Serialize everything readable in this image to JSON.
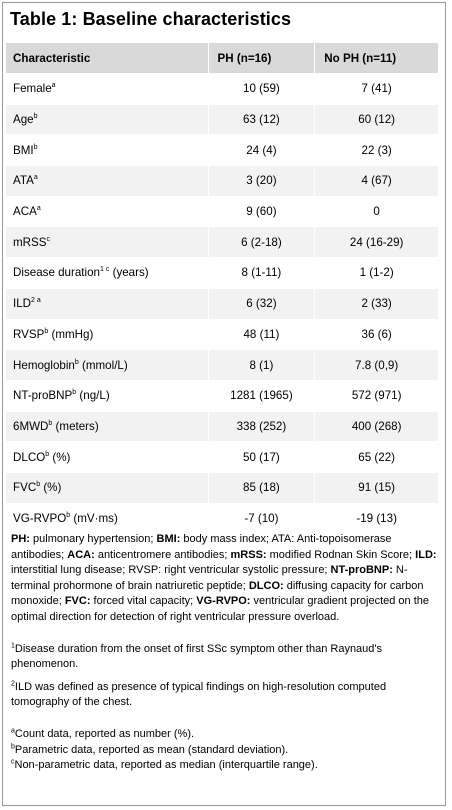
{
  "title": "Table 1: Baseline characteristics",
  "table": {
    "headers": [
      "Characteristic",
      "PH (n=16)",
      "No PH (n=11)"
    ],
    "rows": [
      {
        "label": "Female",
        "sup": "a",
        "suffix": "",
        "ph": "10 (59)",
        "noph": "7 (41)"
      },
      {
        "label": "Age",
        "sup": "b",
        "suffix": "",
        "ph": "63 (12)",
        "noph": "60 (12)"
      },
      {
        "label": "BMI",
        "sup": "b",
        "suffix": "",
        "ph": "24 (4)",
        "noph": "22 (3)"
      },
      {
        "label": "ATA",
        "sup": "a",
        "suffix": "",
        "ph": "3 (20)",
        "noph": "4 (67)"
      },
      {
        "label": "ACA",
        "sup": "a",
        "suffix": "",
        "ph": "9 (60)",
        "noph": "0"
      },
      {
        "label": "mRSS",
        "sup": "c",
        "suffix": "",
        "ph": "6 (2-18)",
        "noph": "24 (16-29)"
      },
      {
        "label": "Disease duration",
        "sup": "1 c",
        "suffix": " (years)",
        "ph": "8 (1-11)",
        "noph": "1 (1-2)"
      },
      {
        "label": "ILD",
        "sup": "2 a",
        "suffix": "",
        "ph": "6 (32)",
        "noph": "2 (33)"
      },
      {
        "label": "RVSP",
        "sup": "b",
        "suffix": " (mmHg)",
        "ph": "48 (11)",
        "noph": "36 (6)"
      },
      {
        "label": "Hemoglobin",
        "sup": "b",
        "suffix": " (mmol/L)",
        "ph": "8 (1)",
        "noph": "7.8 (0,9)"
      },
      {
        "label": "NT-proBNP",
        "sup": "b",
        "suffix": " (ng/L)",
        "ph": "1281 (1965)",
        "noph": "572 (971)"
      },
      {
        "label": "6MWD",
        "sup": "b",
        "suffix": " (meters)",
        "ph": "338 (252)",
        "noph": "400 (268)"
      },
      {
        "label": "DLCO",
        "sup": "b",
        "suffix": " (%)",
        "ph": "50 (17)",
        "noph": "65 (22)"
      },
      {
        "label": "FVC",
        "sup": "b",
        "suffix": " (%)",
        "ph": "85 (18)",
        "noph": "91 (15)"
      },
      {
        "label": "VG-RVPO",
        "sup": "b",
        "suffix": " (mV·ms)",
        "ph": "-7 (10)",
        "noph": "-19 (13)"
      }
    ]
  },
  "abbreviations": [
    {
      "term": "PH:",
      "def": " pulmonary hypertension; "
    },
    {
      "term": "BMI:",
      "def": " body mass index; ATA: Anti-topoisomerase antibodies; "
    },
    {
      "term": "ACA:",
      "def": " anticentromere antibodies; "
    },
    {
      "term": "mRSS:",
      "def": " modified Rodnan Skin Score; "
    },
    {
      "term": "ILD:",
      "def": " interstitial lung disease; RVSP: right ventricular systolic pressure; "
    },
    {
      "term": "NT-proBNP:",
      "def": " N-terminal prohormone of brain natriuretic peptide; "
    },
    {
      "term": "DLCO:",
      "def": " diffusing capacity for carbon monoxide; "
    },
    {
      "term": "FVC:",
      "def": " forced vital capacity; "
    },
    {
      "term": "VG-RVPO:",
      "def": " ventricular gradient projected on the optimal direction for detection of right ventricular pressure overload."
    }
  ],
  "footnotes": [
    {
      "mark": "1",
      "text": "Disease duration from the onset of first SSc symptom other than Raynaud's phenomenon."
    },
    {
      "mark": "2",
      "text": "ILD was defined as presence of typical findings on high-resolution computed tomography of the chest."
    }
  ],
  "datatype_notes": [
    {
      "mark": "a",
      "text": "Count data, reported as number (%)."
    },
    {
      "mark": "b",
      "text": "Parametric data, reported as mean (standard deviation)."
    },
    {
      "mark": "c",
      "text": "Non-parametric data, reported as median (interquartile range)."
    }
  ]
}
